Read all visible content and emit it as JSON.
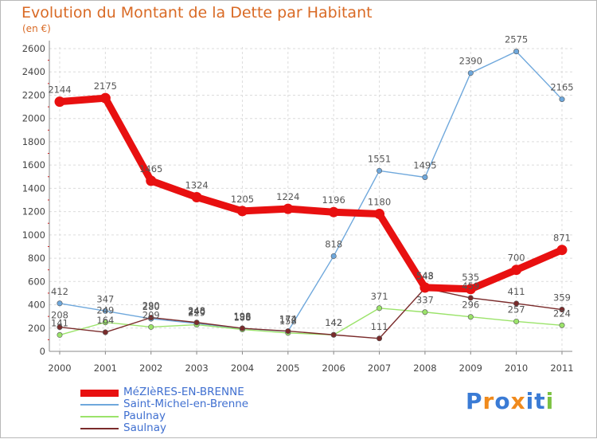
{
  "title": "Evolution du Montant de la Dette par Habitant",
  "subtitle": "(en €)",
  "logo_letters": [
    "P",
    "r",
    "o",
    "x",
    "i",
    "t",
    "i"
  ],
  "logo_colors": [
    "#3a7bd5",
    "#f08a1c",
    "#3a7bd5",
    "#f08a1c",
    "#3a7bd5",
    "#3a7bd5",
    "#7cc242"
  ],
  "chart_data": {
    "type": "line",
    "title": "Evolution du Montant de la Dette par Habitant",
    "ylabel": "(en €)",
    "xlabel": "",
    "x": [
      "2000",
      "2001",
      "2002",
      "2003",
      "2004",
      "2005",
      "2006",
      "2007",
      "2008",
      "2009",
      "2010",
      "2011"
    ],
    "ylim": [
      0,
      2600
    ],
    "yticks": [
      0,
      200,
      400,
      600,
      800,
      1000,
      1200,
      1400,
      1600,
      1800,
      2000,
      2200,
      2400,
      2600
    ],
    "grid": true,
    "legend_position": "bottom-left",
    "series": [
      {
        "name": "MéZIèRES-EN-BRENNE",
        "color": "#e81010",
        "values": [
          2144,
          2175,
          1465,
          1324,
          1205,
          1224,
          1196,
          1180,
          548,
          535,
          700,
          871
        ]
      },
      {
        "name": "Saint-Michel-en-Brenne",
        "color": "#6fa8dc",
        "values": [
          412,
          347,
          280,
          240,
          196,
          172,
          818,
          1551,
          1495,
          2390,
          2575,
          2165
        ]
      },
      {
        "name": "Paulnay",
        "color": "#9be36a",
        "values": [
          141,
          249,
          209,
          229,
          188,
          158,
          142,
          371,
          337,
          296,
          257,
          224
        ]
      },
      {
        "name": "Saulnay",
        "color": "#7a2b2b",
        "values": [
          208,
          164,
          290,
          248,
          198,
          174,
          142,
          111,
          543,
          459,
          411,
          359
        ]
      }
    ]
  }
}
